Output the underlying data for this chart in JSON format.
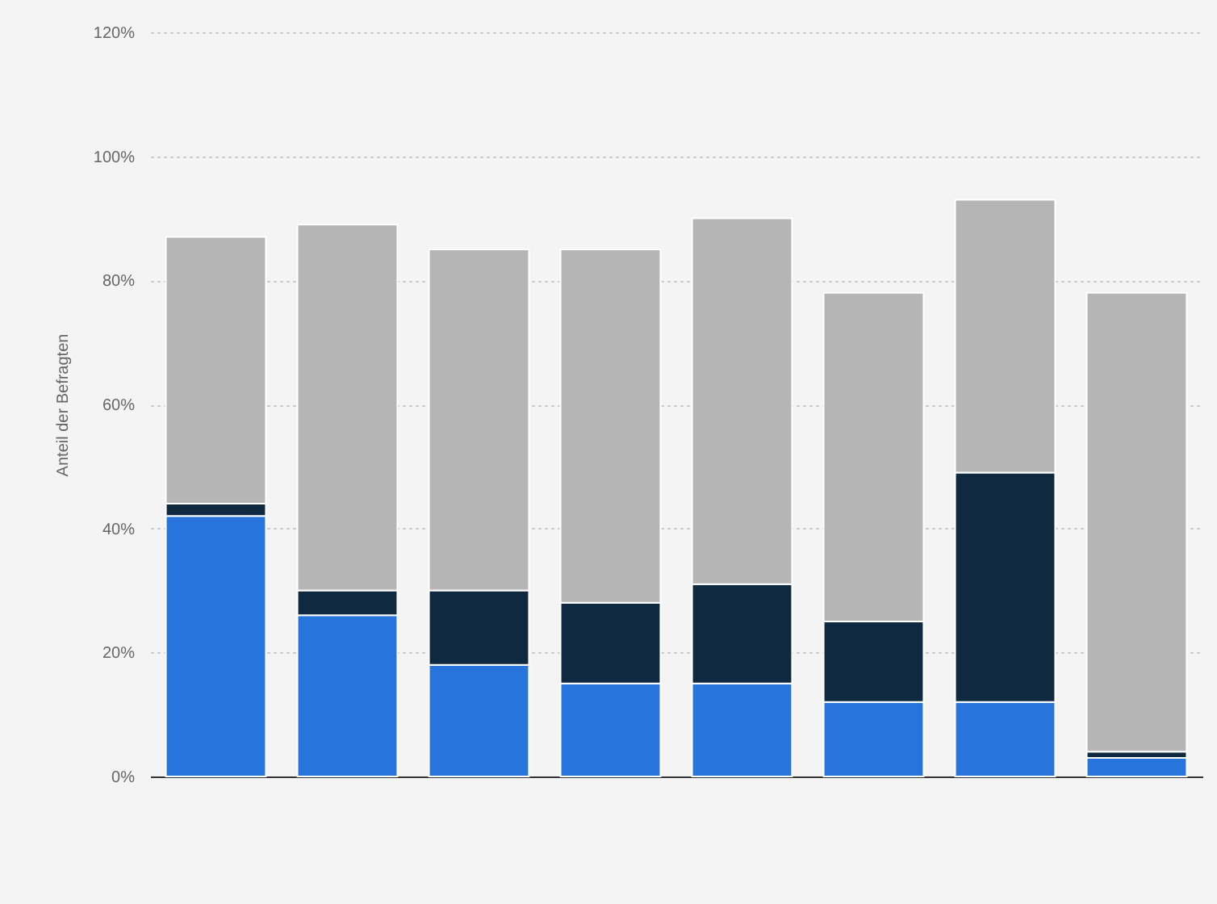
{
  "chart_data": {
    "type": "bar",
    "stacked": true,
    "ylabel": "Anteil der Befragten",
    "categories": [
      null,
      null,
      null,
      null,
      null,
      null,
      null,
      null
    ],
    "series": [
      {
        "color": "#2775dc",
        "values": [
          42,
          26,
          18,
          15,
          15,
          12,
          12,
          3
        ]
      },
      {
        "color": "#0f2a40",
        "values": [
          2,
          4,
          12,
          13,
          16,
          13,
          37,
          1
        ]
      },
      {
        "color": "#b5b5b5",
        "values": [
          43,
          59,
          55,
          57,
          59,
          53,
          44,
          74
        ]
      }
    ],
    "ylim": [
      0,
      120
    ],
    "yticks": [
      {
        "value": 0,
        "label": "0%"
      },
      {
        "value": 20,
        "label": "20%"
      },
      {
        "value": 40,
        "label": "40%"
      },
      {
        "value": 60,
        "label": "60%"
      },
      {
        "value": 80,
        "label": "80%"
      },
      {
        "value": 100,
        "label": "100%"
      },
      {
        "value": 120,
        "label": "120%"
      }
    ],
    "grid": "y"
  }
}
